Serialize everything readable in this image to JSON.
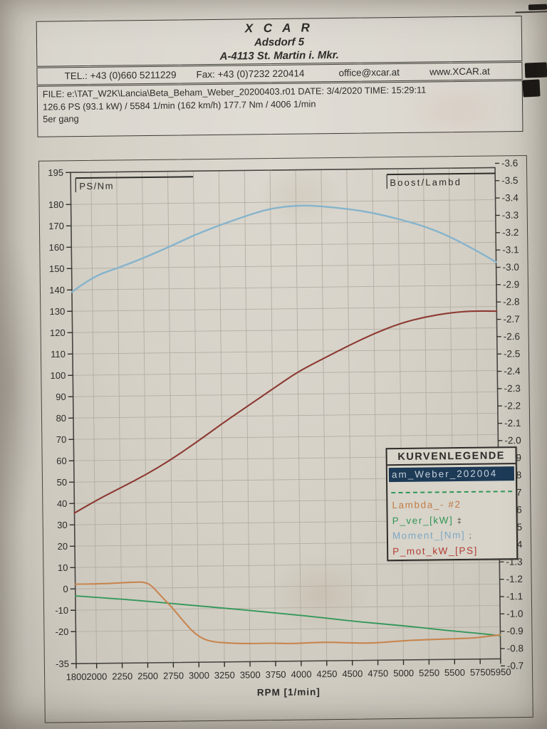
{
  "header": {
    "company": "X C A R",
    "address_line1": "Adsdorf 5",
    "address_line2": "A-4113 St. Martin i. Mkr."
  },
  "contact": {
    "tel": "TEL.: +43 (0)660 5211229",
    "fax": "Fax: +43 (0)7232 220414",
    "email": "office@xcar.at",
    "web": "www.XCAR.at"
  },
  "file_info": {
    "line1": "FILE: e:\\TAT_W2K\\Lancia\\Beta_Beham_Weber_20200403.r01  DATE: 3/4/2020  TIME: 15:29:11",
    "line2": "126.6 PS  (93.1 kW) / 5584 1/min (162 km/h)    177.7 Nm / 4006 1/min",
    "line3": "5er gang"
  },
  "chart_data": {
    "type": "line",
    "xlabel": "RPM  [1/min]",
    "left_axis_label": "PS/Nm",
    "right_axis_label": "Boost/Lambd",
    "x_range": [
      1800,
      5950
    ],
    "left_range": [
      -35,
      195
    ],
    "right_range_top_to_bottom": [
      -3.6,
      -0.7
    ],
    "grid": true,
    "x_ticks": [
      1800,
      2000,
      2250,
      2500,
      2750,
      3000,
      3250,
      3500,
      3750,
      4000,
      4250,
      4500,
      4750,
      5000,
      5250,
      5500,
      5750,
      5950
    ],
    "left_tick_labels": [
      "195",
      "180",
      "170",
      "160",
      "150",
      "140",
      "130",
      "120",
      "110",
      "100",
      "90",
      "80",
      "70",
      "60",
      "50",
      "40",
      "30",
      "20",
      "10",
      "0",
      "-10",
      "-20",
      "-35"
    ],
    "right_tick_labels": [
      "-3.6",
      "-3.5",
      "-3.4",
      "-3.3",
      "-3.2",
      "-3.1",
      "-3.0",
      "-2.9",
      "-2.8",
      "-2.7",
      "-2.6",
      "-2.5",
      "-2.4",
      "-2.3",
      "-2.2",
      "-2.1",
      "-2.0",
      "-1.9",
      "-1.8",
      "-1.7",
      "-1.6",
      "-1.5",
      "-1.4",
      "-1.3",
      "-1.2",
      "-1.1",
      "-1.0",
      "-0.9",
      "-0.8",
      "-0.7"
    ],
    "legend": {
      "title": "KURVENLEGENDE",
      "run_label": "am_Weber_202004",
      "run_bg": "#1d3a56",
      "entries": [
        {
          "label": "Lambda_- #2",
          "color": "#c07c48",
          "suffix": ""
        },
        {
          "label": "P_ver_[kW]",
          "color": "#2f9655",
          "suffix": "‡"
        },
        {
          "label": "Moment_[Nm]",
          "color": "#7da6c3",
          "suffix": ";"
        },
        {
          "label": "P_mot_kW_[PS]",
          "color": "#b23c33",
          "suffix": ""
        }
      ]
    },
    "series": [
      {
        "name": "Moment_[Nm]",
        "axis": "left",
        "color": "#86b4cc",
        "width": 2.4,
        "points": [
          [
            1800,
            139
          ],
          [
            2000,
            146
          ],
          [
            2250,
            150
          ],
          [
            2500,
            154.5
          ],
          [
            2600,
            156.5
          ],
          [
            2750,
            159.5
          ],
          [
            3000,
            165
          ],
          [
            3250,
            169.5
          ],
          [
            3500,
            173.5
          ],
          [
            3700,
            176.5
          ],
          [
            3900,
            178
          ],
          [
            4100,
            178.3
          ],
          [
            4250,
            177.8
          ],
          [
            4500,
            176.5
          ],
          [
            4750,
            174.5
          ],
          [
            5000,
            171.5
          ],
          [
            5250,
            168
          ],
          [
            5500,
            163
          ],
          [
            5750,
            156.5
          ],
          [
            5950,
            150.8
          ]
        ]
      },
      {
        "name": "P_mot_kW_[PS]",
        "axis": "left",
        "color": "#8d3a32",
        "width": 2.1,
        "points": [
          [
            1800,
            35.5
          ],
          [
            2000,
            41
          ],
          [
            2250,
            47
          ],
          [
            2500,
            53
          ],
          [
            2750,
            60
          ],
          [
            3000,
            68
          ],
          [
            3250,
            76.5
          ],
          [
            3500,
            84.5
          ],
          [
            3750,
            92.5
          ],
          [
            4000,
            100.5
          ],
          [
            4250,
            106.5
          ],
          [
            4500,
            112.5
          ],
          [
            4750,
            118
          ],
          [
            5000,
            122.5
          ],
          [
            5250,
            125.5
          ],
          [
            5500,
            127.3
          ],
          [
            5700,
            128
          ],
          [
            5950,
            127.8
          ]
        ]
      },
      {
        "name": "P_ver_[kW]",
        "axis": "left",
        "color": "#35985a",
        "width": 1.9,
        "points": [
          [
            1800,
            -3.3
          ],
          [
            2250,
            -5
          ],
          [
            2500,
            -6.2
          ],
          [
            2750,
            -7.4
          ],
          [
            3000,
            -8.6
          ],
          [
            3250,
            -9.8
          ],
          [
            3500,
            -11
          ],
          [
            3750,
            -12.3
          ],
          [
            4000,
            -13.6
          ],
          [
            4250,
            -15
          ],
          [
            4500,
            -16.5
          ],
          [
            4750,
            -17.8
          ],
          [
            5000,
            -19
          ],
          [
            5250,
            -20.4
          ],
          [
            5500,
            -21.8
          ],
          [
            5750,
            -23
          ],
          [
            5950,
            -24.2
          ]
        ]
      },
      {
        "name": "Lambda_- #2",
        "axis": "left",
        "color": "#c8854f",
        "width": 2.1,
        "points": [
          [
            1800,
            2.2
          ],
          [
            2000,
            2.2
          ],
          [
            2200,
            2.5
          ],
          [
            2350,
            2.8
          ],
          [
            2480,
            2.9
          ],
          [
            2550,
            1
          ],
          [
            2650,
            -4.5
          ],
          [
            2750,
            -9.5
          ],
          [
            2850,
            -15.5
          ],
          [
            2950,
            -21
          ],
          [
            3050,
            -24.3
          ],
          [
            3150,
            -25.6
          ],
          [
            3300,
            -26.2
          ],
          [
            3500,
            -26.6
          ],
          [
            3700,
            -26.4
          ],
          [
            3900,
            -26.8
          ],
          [
            4100,
            -26.4
          ],
          [
            4300,
            -26.3
          ],
          [
            4500,
            -26.8
          ],
          [
            4700,
            -27
          ],
          [
            4900,
            -26.3
          ],
          [
            5100,
            -25.8
          ],
          [
            5350,
            -25.5
          ],
          [
            5550,
            -25.3
          ],
          [
            5700,
            -25.1
          ],
          [
            5800,
            -24.5
          ],
          [
            5950,
            -23.8
          ]
        ]
      }
    ]
  }
}
